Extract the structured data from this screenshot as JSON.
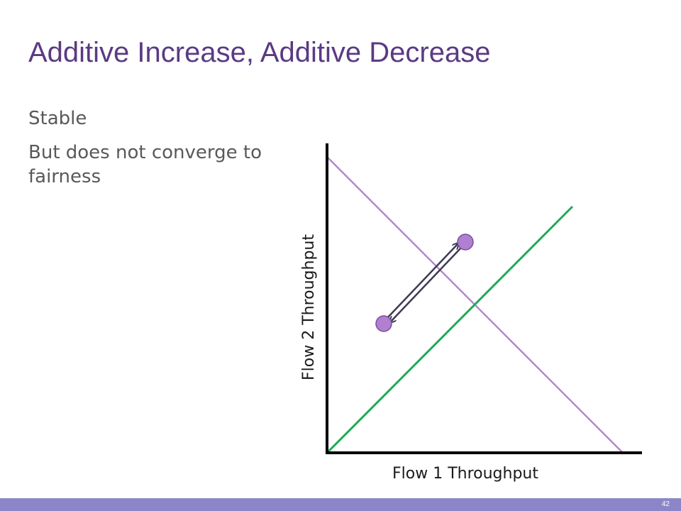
{
  "slide": {
    "title": "Additive Increase, Additive Decrease",
    "bullets": [
      "Stable",
      "But does not converge to fairness"
    ],
    "slide_number": "42"
  },
  "diagram": {
    "x_axis_label": "Flow 1 Throughput",
    "y_axis_label": "Flow 2 Throughput",
    "colors": {
      "title": "#5b3a83",
      "efficiency_line": "#b08ac9",
      "fairness_line": "#1faa55",
      "point_fill": "#b07fcf",
      "point_stroke": "#7a4fa0",
      "arrow": "#3f3a55",
      "axis": "#000000",
      "footer": "#8c86c8"
    }
  }
}
